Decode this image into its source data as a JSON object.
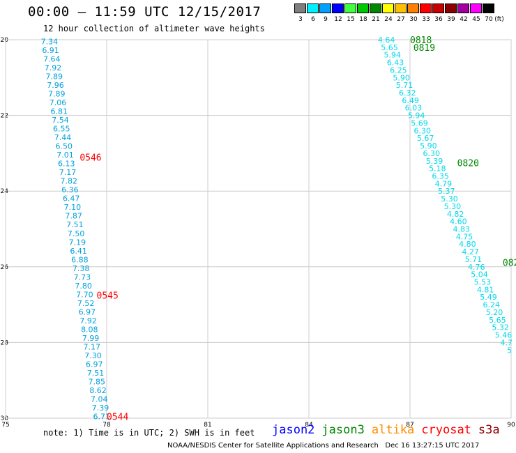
{
  "header": {
    "title": "00:00 – 11:59 UTC 12/15/2017",
    "subtitle": "12 hour collection of altimeter wave heights"
  },
  "legend": {
    "unit": "(ft)",
    "bins": [
      {
        "label": "3",
        "color": "#7f7f7f"
      },
      {
        "label": "6",
        "color": "#00f0ff"
      },
      {
        "label": "9",
        "color": "#00a0ff"
      },
      {
        "label": "12",
        "color": "#0000ff"
      },
      {
        "label": "15",
        "color": "#40ff40"
      },
      {
        "label": "18",
        "color": "#00c800"
      },
      {
        "label": "21",
        "color": "#008800"
      },
      {
        "label": "24",
        "color": "#ffff00"
      },
      {
        "label": "27",
        "color": "#ffc000"
      },
      {
        "label": "30",
        "color": "#ff8000"
      },
      {
        "label": "33",
        "color": "#ff0000"
      },
      {
        "label": "36",
        "color": "#c80000"
      },
      {
        "label": "39",
        "color": "#8b0000"
      },
      {
        "label": "42",
        "color": "#a000a0"
      },
      {
        "label": "45",
        "color": "#ff00ff"
      },
      {
        "label": "70",
        "color": "#000000"
      }
    ]
  },
  "map": {
    "lon_ticks": [
      "75",
      "78",
      "81",
      "84",
      "87",
      "90"
    ],
    "lat_ticks": [
      "-20",
      "-22",
      "-24",
      "-26",
      "-28",
      "-30"
    ],
    "lon_range": [
      75,
      90
    ],
    "lat_range": [
      -20,
      -30
    ],
    "grid_color": "#cccccc"
  },
  "tracks": [
    {
      "satellite": "jason3",
      "value_color": "#00a0dc",
      "time_color": "#ff0000",
      "lon_start": 76.3,
      "lat_start": -20.05,
      "lon_end": 77.85,
      "lat_end": -29.95,
      "values": [
        "7.34",
        "6.91",
        "7.64",
        "7.92",
        "7.89",
        "7.96",
        "7.89",
        "7.06",
        "6.81",
        "7.54",
        "6.55",
        "7.44",
        "6.50",
        "7.01",
        "6.13",
        "7.17",
        "7.82",
        "6.36",
        "6.47",
        "7.10",
        "7.87",
        "7.51",
        "7.50",
        "7.19",
        "6.41",
        "6.88",
        "7.38",
        "7.73",
        "7.80",
        "7.70",
        "7.52",
        "6.97",
        "7.92",
        "8.08",
        "7.99",
        "7.17",
        "7.30",
        "6.97",
        "7.51",
        "7.85",
        "8.62",
        "7.04",
        "7.39",
        "6.71"
      ],
      "times": [
        {
          "label": "0546",
          "lon": 77.2,
          "lat": -23.1
        },
        {
          "label": "0545",
          "lon": 77.7,
          "lat": -26.75
        },
        {
          "label": "0544",
          "lon": 78.0,
          "lat": -29.95
        }
      ]
    },
    {
      "satellite": "cryosat",
      "value_color": "#00d8ec",
      "time_color": "#008800",
      "lon_start": 86.3,
      "lat_start": -20.0,
      "lon_end": 89.95,
      "lat_end": -28.2,
      "values": [
        "4.64",
        "5.65",
        "5.94",
        "6.43",
        "6.25",
        "5.90",
        "5.71",
        "6.32",
        "6.49",
        "6.03",
        "5.94",
        "5.69",
        "6.30",
        "5.67",
        "5.90",
        "6.30",
        "5.39",
        "5.18",
        "6.35",
        "4.79",
        "5.37",
        "5.30",
        "5.30",
        "4.82",
        "4.60",
        "4.83",
        "4.75",
        "4.80",
        "4.27",
        "5.71",
        "4.76",
        "5.04",
        "5.53",
        "4.81",
        "5.49",
        "6.24",
        "5.20",
        "5.65",
        "5.32",
        "5.46",
        "4.7",
        "5"
      ],
      "times": [
        {
          "label": "0818",
          "lon": 87.0,
          "lat": -20.0
        },
        {
          "label": "0819",
          "lon": 87.1,
          "lat": -20.2
        },
        {
          "label": "0820",
          "lon": 88.4,
          "lat": -23.25
        },
        {
          "label": "082",
          "lon": 89.75,
          "lat": -25.88
        }
      ]
    }
  ],
  "footer": {
    "note": "note: 1) Time is in UTC; 2) SWH is in feet",
    "satellites": [
      {
        "name": "jason2",
        "color": "#0000ff"
      },
      {
        "name": "jason3",
        "color": "#008800"
      },
      {
        "name": "altika",
        "color": "#ff8c00"
      },
      {
        "name": "cryosat",
        "color": "#ff0000"
      },
      {
        "name": "s3a",
        "color": "#8b0000"
      }
    ],
    "credit": "NOAA/NESDIS Center for Satellite Applications and Research   Dec 16 13:27:15 UTC 2017"
  }
}
